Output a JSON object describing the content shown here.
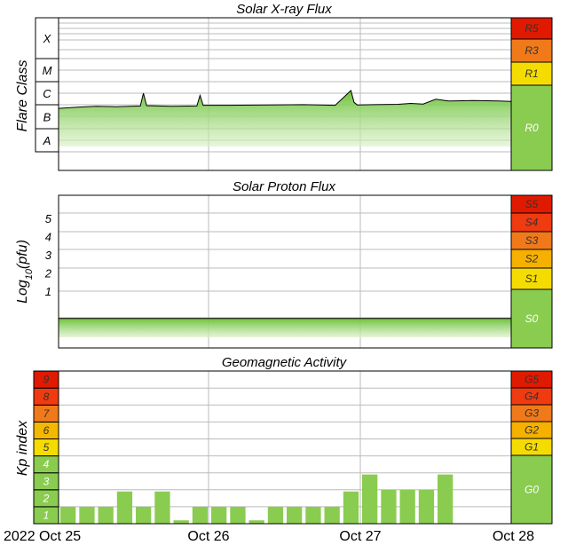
{
  "chart_data": [
    {
      "type": "line",
      "title": "Solar X-ray Flux",
      "ylabel": "Flare Class",
      "y_scale": "log",
      "flare_classes": [
        "A",
        "B",
        "C",
        "M",
        "X"
      ],
      "x": [
        "2022-10-25T00:00",
        "2022-10-25T03:00",
        "2022-10-25T06:00",
        "2022-10-25T09:00",
        "2022-10-25T13:00",
        "2022-10-25T13:30",
        "2022-10-25T14:00",
        "2022-10-25T18:00",
        "2022-10-25T22:00",
        "2022-10-25T22:30",
        "2022-10-25T23:00",
        "2022-10-26T03:00",
        "2022-10-26T09:00",
        "2022-10-26T15:00",
        "2022-10-26T20:00",
        "2022-10-26T22:30",
        "2022-10-26T23:00",
        "2022-10-26T23:30",
        "2022-10-27T02:00",
        "2022-10-27T06:00",
        "2022-10-27T08:00",
        "2022-10-27T10:00",
        "2022-10-27T12:00",
        "2022-10-27T14:00",
        "2022-10-27T18:00",
        "2022-10-27T22:00",
        "2022-10-28T00:00",
        "2022-10-28T02:00",
        "2022-10-28T04:00"
      ],
      "y": [
        2.2e-07,
        2.5e-07,
        2.7e-07,
        2.6e-07,
        2.8e-07,
        1e-06,
        2.9e-07,
        2.7e-07,
        2.8e-07,
        8e-07,
        3e-07,
        3e-07,
        3.1e-07,
        3.2e-07,
        3e-07,
        1.3e-06,
        4e-07,
        3.1e-07,
        3.2e-07,
        3.3e-07,
        3.6e-07,
        3.4e-07,
        5.5e-07,
        4.6e-07,
        4.8e-07,
        4.6e-07,
        4.4e-07,
        4.2e-07,
        4.5e-07
      ],
      "scale": [
        {
          "label": "R5",
          "color": "#e01a00"
        },
        {
          "label": "R3",
          "color": "#f07a1a"
        },
        {
          "label": "R1",
          "color": "#f5dc00"
        },
        {
          "label": "R0",
          "color": "#8acc50"
        }
      ]
    },
    {
      "type": "line",
      "title": "Solar Proton Flux",
      "ylabel_main": "Log",
      "ylabel_sub": "10",
      "ylabel_unit": "(pfu)",
      "y_ticks": [
        "1",
        "2",
        "3",
        "4",
        "5"
      ],
      "x": [
        "2022-10-25T00:00",
        "2022-10-25T12:00",
        "2022-10-26T00:00",
        "2022-10-26T12:00",
        "2022-10-27T00:00",
        "2022-10-27T12:00",
        "2022-10-28T00:00",
        "2022-10-28T04:00"
      ],
      "y": [
        -0.5,
        -0.5,
        -0.5,
        -0.5,
        -0.5,
        -0.5,
        -0.5,
        -0.5
      ],
      "scale": [
        {
          "label": "S5",
          "color": "#e01a00"
        },
        {
          "label": "S4",
          "color": "#f03a10"
        },
        {
          "label": "S3",
          "color": "#f07a1a"
        },
        {
          "label": "S2",
          "color": "#f5b000"
        },
        {
          "label": "S1",
          "color": "#f5dc00"
        },
        {
          "label": "S0",
          "color": "#8acc50"
        }
      ]
    },
    {
      "type": "bar",
      "title": "Geomagnetic Activity",
      "ylabel": "Kp index",
      "kp_levels": [
        {
          "label": "1",
          "color": "#8acc50"
        },
        {
          "label": "2",
          "color": "#8acc50"
        },
        {
          "label": "3",
          "color": "#8acc50"
        },
        {
          "label": "4",
          "color": "#8acc50"
        },
        {
          "label": "5",
          "color": "#f5dc00"
        },
        {
          "label": "6",
          "color": "#f5b800"
        },
        {
          "label": "7",
          "color": "#f07a1a"
        },
        {
          "label": "8",
          "color": "#f03a10"
        },
        {
          "label": "9",
          "color": "#e01a00"
        }
      ],
      "categories": [
        "2022-10-25T00:00",
        "2022-10-25T03:00",
        "2022-10-25T06:00",
        "2022-10-25T09:00",
        "2022-10-25T12:00",
        "2022-10-25T15:00",
        "2022-10-25T18:00",
        "2022-10-25T21:00",
        "2022-10-26T00:00",
        "2022-10-26T03:00",
        "2022-10-26T06:00",
        "2022-10-26T09:00",
        "2022-10-26T12:00",
        "2022-10-26T15:00",
        "2022-10-26T18:00",
        "2022-10-26T21:00",
        "2022-10-27T00:00",
        "2022-10-27T03:00",
        "2022-10-27T06:00",
        "2022-10-27T09:00",
        "2022-10-27T12:00",
        "2022-10-27T15:00",
        "2022-10-27T18:00",
        "2022-10-27T21:00",
        "2022-10-28T00:00",
        "2022-10-28T03:00",
        "2022-10-28T06:00",
        "2022-10-28T09:00",
        "2022-10-28T12:00",
        "2022-10-28T15:00",
        "2022-10-28T18:00",
        "2022-10-28T21:00"
      ],
      "values": [
        1.0,
        1.0,
        1.0,
        1.9,
        1.0,
        1.9,
        0.2,
        1.0,
        1.0,
        1.0,
        0.2,
        1.0,
        1.0,
        1.0,
        1.0,
        1.9,
        2.9,
        2.0,
        2.0,
        2.0,
        2.9,
        null,
        null,
        null,
        null,
        null,
        null,
        null,
        null,
        null,
        null,
        null
      ],
      "scale": [
        {
          "label": "G5",
          "color": "#e01a00"
        },
        {
          "label": "G4",
          "color": "#f03a10"
        },
        {
          "label": "G3",
          "color": "#f07a1a"
        },
        {
          "label": "G2",
          "color": "#f5b000"
        },
        {
          "label": "G1",
          "color": "#f5dc00"
        },
        {
          "label": "G0",
          "color": "#8acc50"
        }
      ]
    }
  ],
  "x_axis": {
    "labels": [
      "2022 Oct 25",
      "Oct 26",
      "Oct 27",
      "Oct 28"
    ]
  }
}
